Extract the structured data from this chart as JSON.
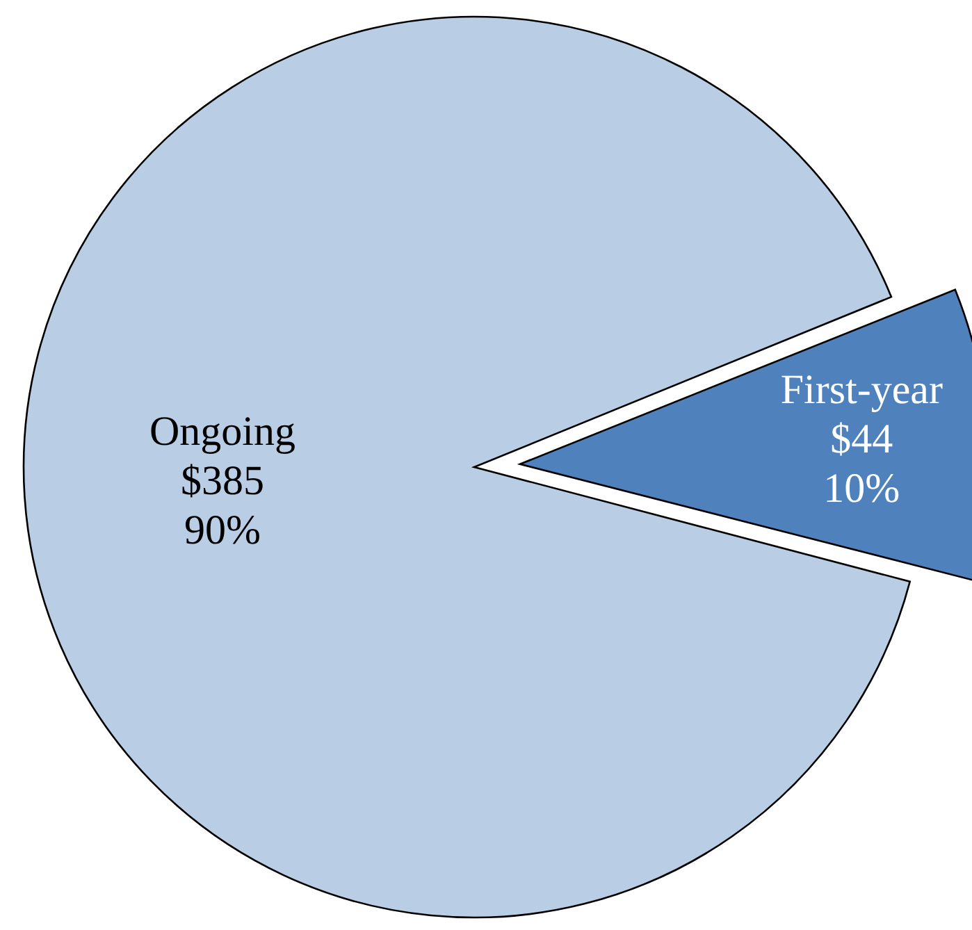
{
  "chart_data": {
    "type": "pie",
    "categories": [
      "Ongoing",
      "First-year"
    ],
    "values": [
      385,
      44
    ],
    "colors": [
      "#b9cde5",
      "#4f81bd"
    ],
    "value_labels": [
      "$385\n90%",
      "$44\n10%"
    ]
  }
}
